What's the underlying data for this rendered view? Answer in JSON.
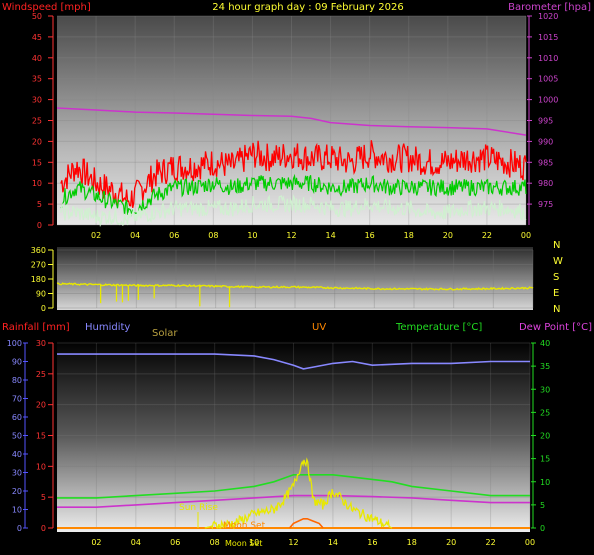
{
  "header": {
    "windspeed_label": "Windspeed [mph]",
    "title": "24 hour graph day : 09 February 2026",
    "barometer_label": "Barometer [hpa]"
  },
  "compass_labels": [
    "N",
    "W",
    "S",
    "E",
    "N"
  ],
  "legend": {
    "rainfall": "Rainfall [mm]",
    "humidity": "Humidity",
    "solar": "Solar",
    "uv": "UV",
    "temperature": "Temperature [°C]",
    "dewpoint": "Dew Point [°C]"
  },
  "annotations": {
    "sun_rise": "Sun Rise",
    "moon_set": "Moon Set",
    "moon_set_bottom": "Moon Set"
  },
  "colors": {
    "wind_gust": "#ff0000",
    "wind_avg": "#00cc00",
    "wind_low": "#d0f0d0",
    "barometer": "#cc33cc",
    "direction": "#e8e800",
    "humidity": "#8888ff",
    "temperature": "#22dd22",
    "dewpoint": "#cc33cc",
    "solar": "#e8e800",
    "uv": "#ff6600",
    "rain": "#ff8800",
    "axis_blue": "#5555ff"
  },
  "chart_data": [
    {
      "type": "line",
      "title": "24 hour graph day : 09 February 2026",
      "x_ticks": [
        "02",
        "04",
        "06",
        "08",
        "10",
        "12",
        "14",
        "16",
        "18",
        "20",
        "22",
        "00"
      ],
      "xlim": [
        0,
        24
      ],
      "y_left": {
        "label": "Windspeed [mph]",
        "ylim": [
          0,
          50
        ],
        "ticks": [
          0,
          5,
          10,
          15,
          20,
          25,
          30,
          35,
          40,
          45,
          50
        ]
      },
      "y_right": {
        "label": "Barometer [hpa]",
        "ylim": [
          970,
          1020
        ],
        "ticks": [
          975,
          980,
          985,
          990,
          995,
          1000,
          1005,
          1010,
          1015,
          1020
        ]
      },
      "series": [
        {
          "name": "Windspeed [mph]",
          "axis": "left",
          "color": "#ff0000",
          "x": [
            0.2,
            1,
            2,
            3,
            3.6,
            4,
            5,
            6,
            7,
            8,
            9,
            10,
            11,
            12,
            13,
            14,
            15,
            16,
            17,
            18,
            19,
            20,
            21,
            22,
            23,
            24
          ],
          "y": [
            10,
            14,
            10,
            8,
            6,
            7,
            12,
            14,
            14,
            15,
            14,
            17,
            16,
            17,
            16,
            16,
            15,
            17,
            16,
            16,
            15,
            15,
            16,
            16,
            15,
            14
          ]
        },
        {
          "axis": "left",
          "color": "#00cc00",
          "x": [
            0.2,
            1,
            2,
            3,
            3.6,
            4,
            5,
            6,
            7,
            8,
            9,
            10,
            11,
            12,
            13,
            14,
            15,
            16,
            17,
            18,
            19,
            20,
            21,
            22,
            23,
            24
          ],
          "y": [
            6,
            9,
            7,
            5,
            4,
            4,
            7,
            9,
            9,
            10,
            9,
            10,
            10,
            10,
            10,
            9,
            9,
            10,
            9,
            9,
            9,
            9,
            9,
            9,
            9,
            9
          ]
        },
        {
          "axis": "left",
          "color": "#d0f0d0",
          "x": [
            0.2,
            1,
            2,
            3,
            3.6,
            4,
            5,
            6,
            7,
            8,
            9,
            10,
            11,
            12,
            13,
            14,
            15,
            16,
            17,
            18,
            19,
            20,
            21,
            22,
            23,
            24
          ],
          "y": [
            3,
            3,
            2,
            2,
            1,
            2,
            3,
            4,
            4,
            4,
            4,
            5,
            5,
            5,
            5,
            4,
            4,
            5,
            4,
            4,
            3,
            3,
            4,
            4,
            4,
            3
          ]
        },
        {
          "name": "Barometer [hpa]",
          "axis": "right",
          "color": "#cc33cc",
          "x": [
            0,
            2,
            4,
            6,
            8,
            10,
            12,
            13,
            14,
            16,
            18,
            20,
            22,
            24
          ],
          "y": [
            998,
            997.5,
            997,
            996.8,
            996.5,
            996.2,
            996,
            995.5,
            994.5,
            993.8,
            993.5,
            993.3,
            993,
            991.5
          ]
        }
      ]
    },
    {
      "type": "line",
      "x_ticks": [
        "02",
        "04",
        "06",
        "08",
        "10",
        "12",
        "14",
        "16",
        "18",
        "20",
        "22",
        "00"
      ],
      "xlim": [
        0,
        24
      ],
      "y_left": {
        "ylim": [
          0,
          360
        ],
        "ticks": [
          0,
          90,
          180,
          270,
          360
        ]
      },
      "y_right_labels": [
        "N",
        "W",
        "S",
        "E",
        "N"
      ],
      "series": [
        {
          "axis": "left",
          "color": "#e8e800",
          "x": [
            0,
            2,
            4,
            6,
            8,
            10,
            12,
            14,
            16,
            18,
            20,
            22,
            24
          ],
          "y": [
            150,
            145,
            140,
            140,
            135,
            130,
            130,
            125,
            120,
            118,
            118,
            120,
            125
          ]
        }
      ],
      "direction_dips": [
        {
          "x": 2.2,
          "y": 30
        },
        {
          "x": 3.0,
          "y": 40
        },
        {
          "x": 3.3,
          "y": 35
        },
        {
          "x": 3.6,
          "y": 45
        },
        {
          "x": 4.1,
          "y": 50
        },
        {
          "x": 4.9,
          "y": 60
        },
        {
          "x": 7.2,
          "y": 10
        },
        {
          "x": 8.7,
          "y": 5
        }
      ]
    },
    {
      "type": "line",
      "x_ticks": [
        "02",
        "04",
        "06",
        "08",
        "10",
        "12",
        "14",
        "16",
        "18",
        "20",
        "22",
        "00"
      ],
      "xlim": [
        0,
        24
      ],
      "y_left_outer": {
        "label": "Humidity",
        "ylim": [
          0,
          100
        ],
        "ticks": [
          0,
          10,
          20,
          30,
          40,
          50,
          60,
          70,
          80,
          90,
          100
        ]
      },
      "y_left_inner": {
        "label": "Rainfall [mm]",
        "ylim": [
          0,
          30
        ],
        "ticks": [
          0,
          5,
          10,
          15,
          20,
          25,
          30
        ]
      },
      "y_right": {
        "label": "Temperature [°C]",
        "ylim": [
          0,
          40
        ],
        "ticks": [
          0,
          5,
          10,
          15,
          20,
          25,
          30,
          35,
          40
        ]
      },
      "series": [
        {
          "name": "Humidity",
          "axis": "left_outer",
          "color": "#8888ff",
          "x": [
            0,
            2,
            4,
            6,
            8,
            10,
            11,
            12,
            12.5,
            13,
            14,
            15,
            16,
            18,
            20,
            22,
            23,
            24
          ],
          "y": [
            94,
            94,
            94,
            94,
            94,
            93,
            91,
            88,
            86,
            87,
            89,
            90,
            88,
            89,
            89,
            90,
            90,
            90
          ]
        },
        {
          "name": "Temperature [°C]",
          "axis": "right",
          "color": "#22dd22",
          "x": [
            0,
            2,
            4,
            6,
            8,
            10,
            11,
            12,
            13,
            14,
            15,
            16,
            17,
            18,
            20,
            22,
            24
          ],
          "y": [
            6.5,
            6.5,
            7,
            7.5,
            8,
            9,
            10,
            11.5,
            11.5,
            11.5,
            11,
            10.5,
            10,
            9,
            8,
            7,
            7
          ]
        },
        {
          "name": "Dew Point [°C]",
          "axis": "right",
          "color": "#cc33cc",
          "x": [
            0,
            2,
            4,
            6,
            8,
            10,
            12,
            13,
            14,
            16,
            18,
            20,
            22,
            24
          ],
          "y": [
            4.5,
            4.5,
            5,
            5.5,
            6,
            6.5,
            7,
            7,
            7,
            6.8,
            6.5,
            6,
            5.5,
            5.5
          ]
        },
        {
          "name": "Solar",
          "axis": "right",
          "color": "#e8e800",
          "x": [
            7.5,
            8,
            9,
            10,
            11,
            11.5,
            12,
            12.4,
            12.6,
            12.8,
            13,
            13.5,
            14,
            14.5,
            15,
            16,
            16.5,
            17
          ],
          "y": [
            0,
            0.5,
            1,
            3,
            4,
            6,
            9,
            14,
            15,
            12,
            6,
            5,
            8,
            6,
            4,
            2,
            1,
            0
          ]
        },
        {
          "name": "UV",
          "axis": "right",
          "color": "#ff6600",
          "x": [
            11.8,
            12,
            12.5,
            12.7,
            13,
            13.3,
            13.5
          ],
          "y": [
            0,
            1,
            2,
            2,
            1.5,
            1,
            0
          ]
        }
      ],
      "rainfall_mm": 0
    }
  ]
}
